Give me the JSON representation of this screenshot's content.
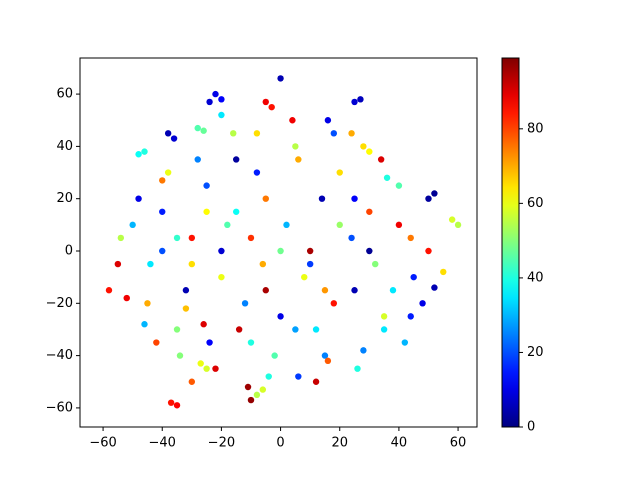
{
  "chart_data": {
    "type": "scatter",
    "colormap": "jet",
    "x": [
      -22,
      -20,
      -24,
      -38,
      -36,
      -28,
      -26,
      -48,
      -46,
      -40,
      -37,
      -35,
      -27,
      -25,
      -8,
      -6,
      -10,
      -5,
      -3,
      0,
      25,
      27,
      28,
      30,
      50,
      52,
      60,
      58,
      -11,
      12,
      -55,
      -50,
      -45,
      -40,
      -35,
      -30,
      -25,
      -20,
      -15,
      -10,
      -5,
      0,
      5,
      10,
      15,
      20,
      25,
      30,
      35,
      40,
      45,
      50,
      -52,
      -44,
      -38,
      -32,
      -26,
      -18,
      -12,
      -6,
      2,
      8,
      14,
      18,
      24,
      32,
      38,
      44,
      48,
      55,
      -48,
      -42,
      -34,
      -28,
      -22,
      -16,
      -8,
      -2,
      6,
      12,
      18,
      26,
      34,
      42,
      -30,
      -20,
      -10,
      0,
      10,
      20,
      30,
      40,
      -15,
      -5,
      5,
      15,
      25,
      -25,
      -35,
      35,
      -58,
      -54,
      -46,
      -32,
      -24,
      -14,
      -4,
      6,
      16,
      28,
      36,
      44,
      52,
      -40,
      -30,
      -20,
      -8,
      4,
      16,
      24
    ],
    "y": [
      60,
      58,
      57,
      45,
      43,
      47,
      46,
      37,
      38,
      27,
      -58,
      -59,
      -43,
      -45,
      -55,
      -53,
      -57,
      57,
      55,
      66,
      57,
      58,
      40,
      38,
      20,
      22,
      10,
      12,
      -52,
      -50,
      -5,
      10,
      -20,
      15,
      -30,
      5,
      25,
      -10,
      35,
      -35,
      20,
      -25,
      40,
      0,
      -40,
      30,
      -15,
      15,
      -30,
      25,
      -10,
      0,
      -18,
      -5,
      30,
      -15,
      -28,
      10,
      -20,
      -5,
      10,
      -10,
      20,
      -20,
      5,
      -5,
      -15,
      5,
      -20,
      -8,
      20,
      -35,
      -40,
      35,
      -45,
      45,
      30,
      -40,
      35,
      -30,
      45,
      -45,
      35,
      -35,
      -5,
      0,
      5,
      0,
      -5,
      10,
      0,
      10,
      15,
      -15,
      -30,
      -15,
      20,
      15,
      5,
      -25,
      -15,
      5,
      -28,
      -22,
      -35,
      -30,
      -48,
      -48,
      -42,
      -38,
      28,
      -25,
      -14,
      0,
      -50,
      52,
      45,
      50,
      50,
      45
    ],
    "c": [
      10,
      12,
      8,
      5,
      8,
      45,
      47,
      38,
      40,
      75,
      85,
      87,
      60,
      58,
      55,
      58,
      97,
      88,
      85,
      5,
      8,
      6,
      65,
      62,
      3,
      2,
      55,
      58,
      96,
      92,
      90,
      30,
      70,
      15,
      50,
      85,
      20,
      60,
      3,
      40,
      75,
      10,
      55,
      95,
      25,
      65,
      5,
      80,
      35,
      45,
      15,
      85,
      88,
      35,
      60,
      5,
      90,
      45,
      25,
      70,
      30,
      60,
      5,
      85,
      20,
      50,
      35,
      75,
      10,
      65,
      10,
      80,
      50,
      25,
      90,
      55,
      15,
      45,
      70,
      35,
      20,
      40,
      90,
      30,
      65,
      8,
      82,
      48,
      18,
      52,
      2,
      88,
      38,
      95,
      28,
      72,
      12,
      62,
      42,
      58,
      85,
      55,
      30,
      68,
      12,
      92,
      40,
      18,
      78,
      25,
      40,
      15,
      5,
      20,
      78,
      35,
      65,
      88,
      10,
      70
    ],
    "xlim": [
      -67.8,
      66.4
    ],
    "ylim": [
      -67.3,
      73.8
    ],
    "clim": [
      0,
      99
    ],
    "xticks": [
      {
        "value": -60,
        "label": "−60"
      },
      {
        "value": -40,
        "label": "−40"
      },
      {
        "value": -20,
        "label": "−20"
      },
      0,
      20,
      40,
      60
    ],
    "yticks": [
      {
        "value": -60,
        "label": "−60"
      },
      {
        "value": -40,
        "label": "−40"
      },
      {
        "value": -20,
        "label": "−20"
      },
      0,
      20,
      40,
      60
    ],
    "cticks": [
      0,
      20,
      40,
      60,
      80
    ]
  }
}
